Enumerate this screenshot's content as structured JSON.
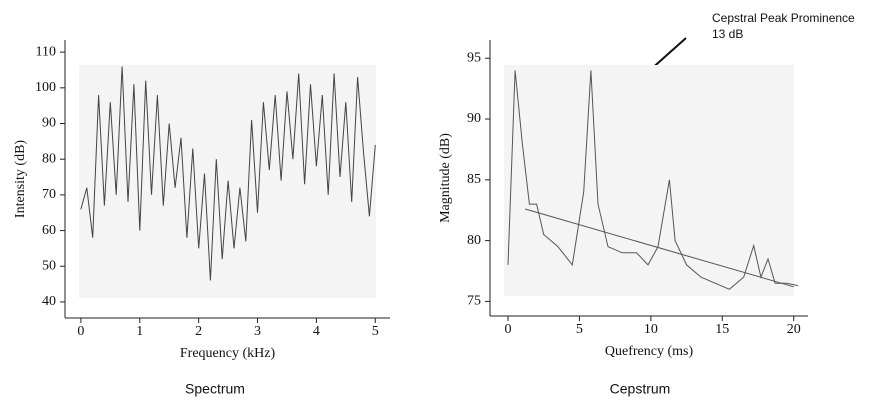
{
  "chart_data": [
    {
      "type": "line",
      "caption": "Spectrum",
      "xlabel": "Frequency (kHz)",
      "ylabel": "Intensity (dB)",
      "xlim": [
        -0.27,
        5.25
      ],
      "ylim": [
        35.5,
        113.4
      ],
      "xticks": [
        0,
        1,
        2,
        3,
        4,
        5
      ],
      "yticks": [
        40,
        50,
        60,
        70,
        80,
        90,
        100,
        110
      ],
      "series": [
        {
          "color": "#444444",
          "x": [
            0,
            0.1,
            0.2,
            0.3,
            0.4,
            0.5,
            0.6,
            0.7,
            0.8,
            0.9,
            1.0,
            1.1,
            1.2,
            1.3,
            1.4,
            1.5,
            1.6,
            1.7,
            1.8,
            1.9,
            2.0,
            2.1,
            2.2,
            2.3,
            2.4,
            2.5,
            2.6,
            2.7,
            2.8,
            2.9,
            3.0,
            3.1,
            3.2,
            3.3,
            3.4,
            3.5,
            3.6,
            3.7,
            3.8,
            3.9,
            4.0,
            4.1,
            4.2,
            4.3,
            4.4,
            4.5,
            4.6,
            4.7,
            4.8,
            4.9,
            5.0
          ],
          "values": [
            66,
            72,
            58,
            98,
            67,
            96,
            70,
            106,
            68,
            101,
            60,
            102,
            70,
            98,
            67,
            90,
            72,
            86,
            58,
            83,
            55,
            76,
            46,
            80,
            52,
            74,
            55,
            72,
            57,
            91,
            65,
            96,
            77,
            98,
            74,
            99,
            80,
            104,
            73,
            101,
            78,
            98,
            70,
            104,
            75,
            96,
            68,
            103,
            82,
            64,
            84
          ]
        }
      ]
    },
    {
      "type": "line",
      "caption": "Cepstrum",
      "xlabel": "Quefrency (ms)",
      "ylabel": "Magnitude (dB)",
      "xlim": [
        -1.26,
        21
      ],
      "ylim": [
        73.8,
        96.5
      ],
      "xticks": [
        0,
        5,
        10,
        15,
        20
      ],
      "yticks": [
        75,
        80,
        85,
        90,
        95
      ],
      "annotation": [
        "Cepstral Peak Prominence",
        "13 dB"
      ],
      "series": [
        {
          "color": "#555555",
          "x": [
            0,
            0.5,
            1,
            1.5,
            2,
            2.5,
            3.5,
            4.5,
            5.3,
            5.8,
            6.3,
            7,
            8,
            9,
            9.8,
            10.5,
            11.3,
            11.7,
            12.5,
            13.5,
            14.5,
            15.5,
            16.5,
            17.2,
            17.7,
            18.2,
            18.7,
            19.5,
            20.3
          ],
          "values": [
            78,
            94,
            88,
            83,
            83,
            80.5,
            79.5,
            78,
            84,
            94,
            83,
            79.5,
            79,
            79,
            78,
            79.5,
            85,
            80,
            78,
            77,
            76.5,
            76,
            77,
            79.6,
            77,
            78.5,
            76.5,
            76.5,
            76.3
          ]
        },
        {
          "color": "#555555",
          "x": [
            1.2,
            20
          ],
          "values": [
            82.6,
            76.2
          ]
        }
      ]
    }
  ]
}
